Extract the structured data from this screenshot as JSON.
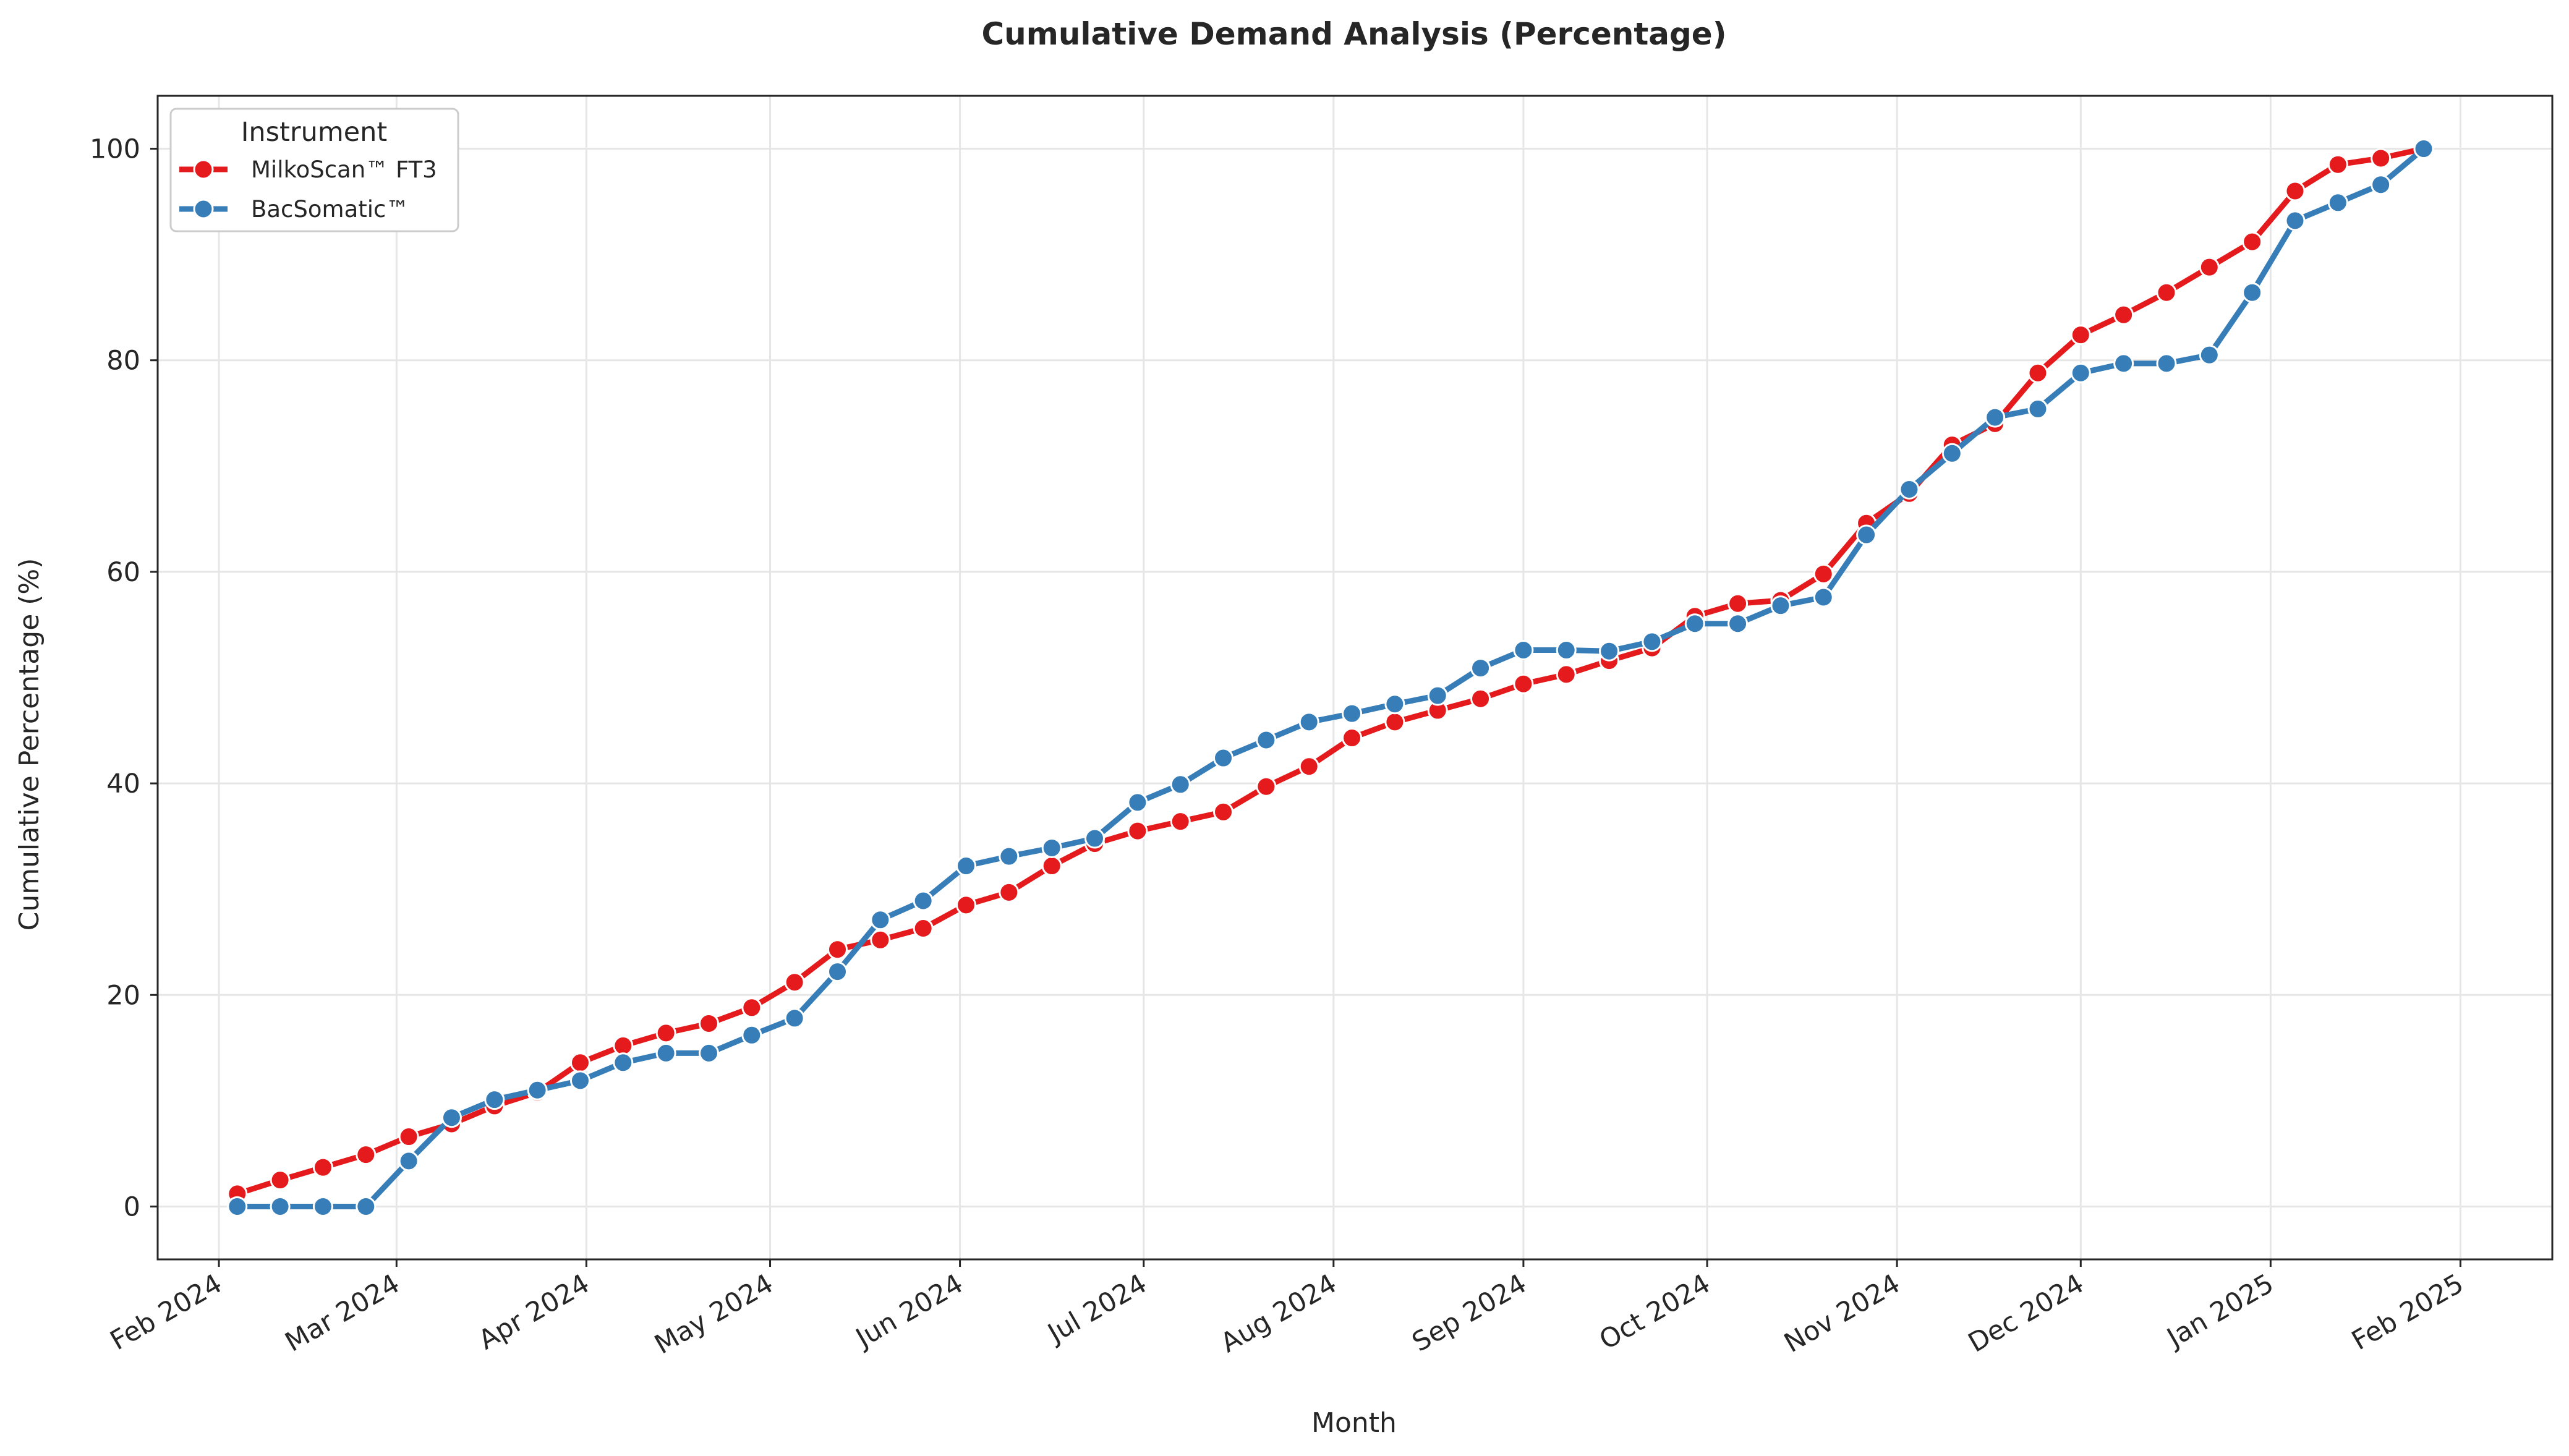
{
  "chart_data": {
    "type": "line",
    "title": "Cumulative Demand Analysis (Percentage)",
    "xlabel": "Month",
    "ylabel": "Cumulative Percentage (%)",
    "x_axis": {
      "type": "date",
      "range": [
        "2024-01-22",
        "2025-02-16"
      ],
      "ticks": [
        {
          "date": "2024-02-01",
          "label": "Feb 2024"
        },
        {
          "date": "2024-03-01",
          "label": "Mar 2024"
        },
        {
          "date": "2024-04-01",
          "label": "Apr 2024"
        },
        {
          "date": "2024-05-01",
          "label": "May 2024"
        },
        {
          "date": "2024-06-01",
          "label": "Jun 2024"
        },
        {
          "date": "2024-07-01",
          "label": "Jul 2024"
        },
        {
          "date": "2024-08-01",
          "label": "Aug 2024"
        },
        {
          "date": "2024-09-01",
          "label": "Sep 2024"
        },
        {
          "date": "2024-10-01",
          "label": "Oct 2024"
        },
        {
          "date": "2024-11-01",
          "label": "Nov 2024"
        },
        {
          "date": "2024-12-01",
          "label": "Dec 2024"
        },
        {
          "date": "2025-01-01",
          "label": "Jan 2025"
        },
        {
          "date": "2025-02-01",
          "label": "Feb 2025"
        }
      ]
    },
    "y_axis": {
      "range": [
        -5,
        105
      ],
      "ticks": [
        0,
        20,
        40,
        60,
        80,
        100
      ]
    },
    "grid": true,
    "legend": {
      "title": "Instrument",
      "placement": "top-left"
    },
    "x": [
      "2024-02-04",
      "2024-02-11",
      "2024-02-18",
      "2024-02-25",
      "2024-03-03",
      "2024-03-10",
      "2024-03-17",
      "2024-03-24",
      "2024-03-31",
      "2024-04-07",
      "2024-04-14",
      "2024-04-21",
      "2024-04-28",
      "2024-05-05",
      "2024-05-12",
      "2024-05-19",
      "2024-05-26",
      "2024-06-02",
      "2024-06-09",
      "2024-06-16",
      "2024-06-23",
      "2024-06-30",
      "2024-07-07",
      "2024-07-14",
      "2024-07-21",
      "2024-07-28",
      "2024-08-04",
      "2024-08-11",
      "2024-08-18",
      "2024-08-25",
      "2024-09-01",
      "2024-09-08",
      "2024-09-15",
      "2024-09-22",
      "2024-09-29",
      "2024-10-06",
      "2024-10-13",
      "2024-10-20",
      "2024-10-27",
      "2024-11-03",
      "2024-11-10",
      "2024-11-17",
      "2024-11-24",
      "2024-12-01",
      "2024-12-08",
      "2024-12-15",
      "2024-12-22",
      "2024-12-29",
      "2025-01-05",
      "2025-01-12",
      "2025-01-19",
      "2025-01-26"
    ],
    "series": [
      {
        "name": "MilkoScan™ FT3",
        "color": "#e41a1c",
        "values": [
          1.2,
          2.5,
          3.7,
          4.9,
          6.6,
          7.8,
          9.5,
          10.8,
          13.6,
          15.2,
          16.4,
          17.3,
          18.8,
          21.2,
          24.3,
          25.2,
          26.3,
          28.5,
          29.7,
          32.2,
          34.3,
          35.5,
          36.4,
          37.3,
          39.7,
          41.6,
          44.3,
          45.8,
          46.9,
          48.0,
          49.4,
          50.3,
          51.6,
          52.8,
          55.8,
          57.0,
          57.3,
          59.8,
          64.6,
          67.4,
          72.0,
          74.0,
          78.8,
          82.4,
          84.3,
          86.4,
          88.8,
          91.2,
          96.0,
          98.5,
          99.1,
          100.0
        ]
      },
      {
        "name": "BacSomatic™",
        "color": "#377eb8",
        "values": [
          0.0,
          0.0,
          0.0,
          0.0,
          4.3,
          8.4,
          10.1,
          11.0,
          11.9,
          13.6,
          14.5,
          14.5,
          16.2,
          17.8,
          22.2,
          27.1,
          28.9,
          32.2,
          33.1,
          33.9,
          34.8,
          38.2,
          39.9,
          42.4,
          44.1,
          45.8,
          46.6,
          47.5,
          48.3,
          50.9,
          52.6,
          52.6,
          52.5,
          53.4,
          55.1,
          55.1,
          56.8,
          57.6,
          63.5,
          67.8,
          71.2,
          74.6,
          75.4,
          78.8,
          79.7,
          79.7,
          80.5,
          86.4,
          93.2,
          94.9,
          96.6,
          100.0
        ]
      }
    ]
  }
}
